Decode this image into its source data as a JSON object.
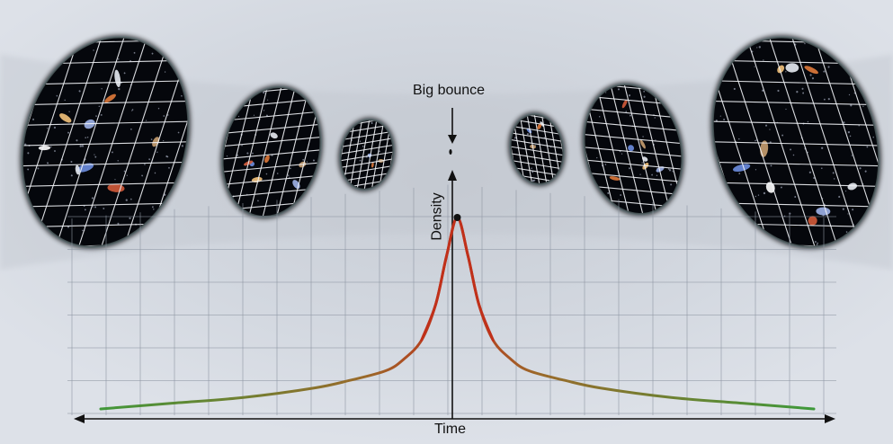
{
  "labels": {
    "event": "Big bounce",
    "x_axis": "Time",
    "y_axis": "Density"
  },
  "colors": {
    "background": "#d6dbe3",
    "universe_fill": "#05070c",
    "grid_on_universe": "#f2f4f8",
    "grid_on_background": "#8e96a3",
    "curve_low": "#3c9a3a",
    "curve_mid": "#9a6a2a",
    "curve_high": "#c0301a",
    "axis": "#111111"
  },
  "icons": {
    "galaxy": "galaxy-icon",
    "arrow": "arrow-icon"
  },
  "universes": [
    {
      "side": "contracting",
      "size": "large"
    },
    {
      "side": "contracting",
      "size": "medium"
    },
    {
      "side": "contracting",
      "size": "small"
    },
    {
      "side": "expanding",
      "size": "small"
    },
    {
      "side": "expanding",
      "size": "medium"
    },
    {
      "side": "expanding",
      "size": "large"
    }
  ],
  "chart_data": {
    "type": "line",
    "title": "",
    "xlabel": "Time",
    "ylabel": "Density",
    "x": [
      -10,
      -8,
      -6,
      -4,
      -3,
      -2,
      -1.5,
      -1,
      -0.6,
      -0.3,
      0,
      0.3,
      0.6,
      1,
      1.5,
      2,
      3,
      4,
      6,
      8,
      10
    ],
    "series": [
      {
        "values": [
          0.0,
          0.03,
          0.06,
          0.11,
          0.15,
          0.2,
          0.26,
          0.36,
          0.55,
          0.8,
          1.0,
          0.8,
          0.55,
          0.36,
          0.26,
          0.2,
          0.15,
          0.11,
          0.06,
          0.03,
          0.0
        ]
      }
    ],
    "annotation": "Big bounce",
    "grid": true
  }
}
